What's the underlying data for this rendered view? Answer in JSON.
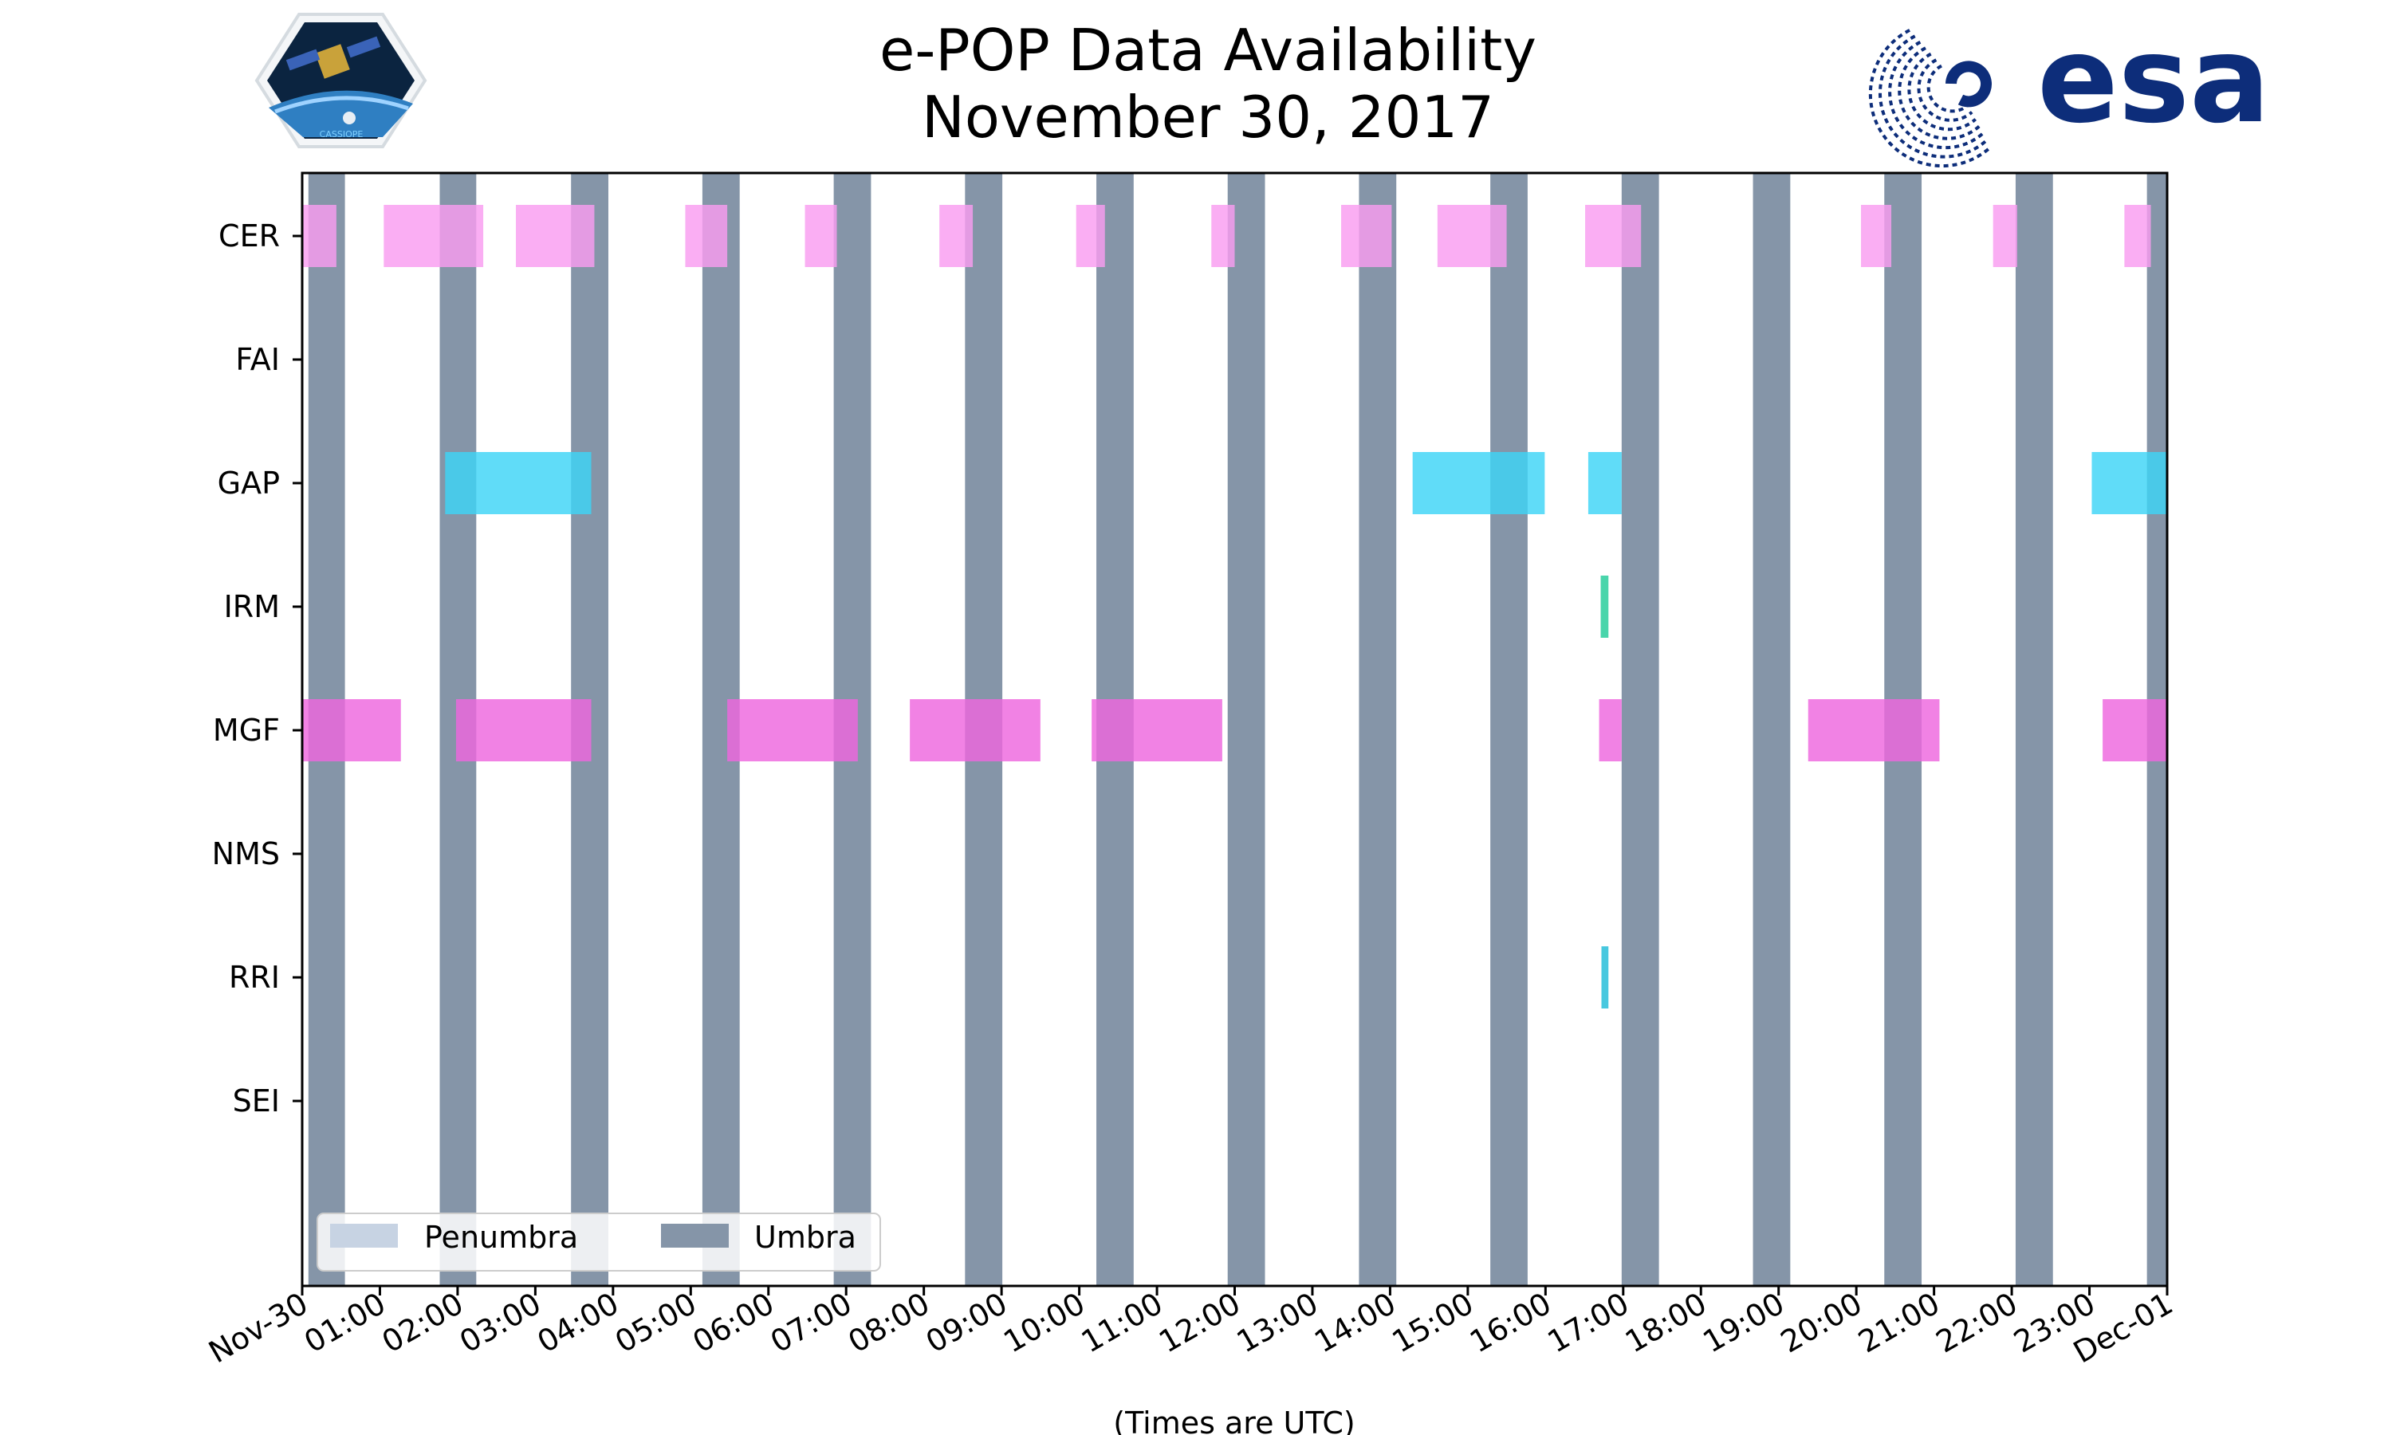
{
  "colors": {
    "umbra": "#8595a8",
    "penumbra": "#c7d3e3",
    "cer": "#f99cf0",
    "gap": "#3dd4f6",
    "irm": "#21cc98",
    "mgf": "#ee66de",
    "rri": "#1fbcd8",
    "esa_blue": "#0d2d7a"
  },
  "logos": {
    "left_name": "cassiope-mission-logo",
    "left_caption": "CASSIOPE",
    "right_name": "esa-logo",
    "right_text": "esa"
  },
  "chart_data": {
    "type": "timeline",
    "title": [
      "e-POP Data Availability",
      "November 30, 2017"
    ],
    "xlabel": "(Times are UTC)",
    "x_unit": "hours since 2017-11-30 00:00 UTC",
    "xlim": [
      0,
      24
    ],
    "xtick_labels": [
      "Nov-30",
      "01:00",
      "02:00",
      "03:00",
      "04:00",
      "05:00",
      "06:00",
      "07:00",
      "08:00",
      "09:00",
      "10:00",
      "11:00",
      "12:00",
      "13:00",
      "14:00",
      "15:00",
      "16:00",
      "17:00",
      "18:00",
      "19:00",
      "20:00",
      "21:00",
      "22:00",
      "23:00",
      "Dec-01"
    ],
    "instruments": [
      "CER",
      "FAI",
      "GAP",
      "IRM",
      "MGF",
      "NMS",
      "RRI",
      "SEI"
    ],
    "legend": {
      "placement": "lower-left",
      "entries": [
        "Penumbra",
        "Umbra"
      ]
    },
    "umbra": [
      [
        0.08,
        0.55
      ],
      [
        1.77,
        2.24
      ],
      [
        3.46,
        3.94
      ],
      [
        5.15,
        5.63
      ],
      [
        6.84,
        7.32
      ],
      [
        8.53,
        9.01
      ],
      [
        10.22,
        10.7
      ],
      [
        11.91,
        12.39
      ],
      [
        13.6,
        14.08
      ],
      [
        15.29,
        15.77
      ],
      [
        16.98,
        17.46
      ],
      [
        18.67,
        19.15
      ],
      [
        20.36,
        20.84
      ],
      [
        22.05,
        22.53
      ],
      [
        23.74,
        24.0
      ]
    ],
    "series": [
      {
        "name": "CER",
        "color_key": "cer",
        "intervals": [
          [
            0.0,
            0.44
          ],
          [
            1.05,
            2.33
          ],
          [
            2.75,
            3.76
          ],
          [
            4.93,
            5.47
          ],
          [
            6.47,
            6.88
          ],
          [
            8.2,
            8.63
          ],
          [
            9.96,
            10.33
          ],
          [
            11.7,
            12.0
          ],
          [
            13.37,
            14.02
          ],
          [
            14.61,
            15.5
          ],
          [
            16.51,
            17.23
          ],
          [
            20.06,
            20.45
          ],
          [
            21.76,
            22.07
          ],
          [
            23.45,
            23.79
          ]
        ]
      },
      {
        "name": "FAI",
        "color_key": "cer",
        "intervals": []
      },
      {
        "name": "GAP",
        "color_key": "gap",
        "intervals": [
          [
            1.84,
            3.72
          ],
          [
            14.29,
            15.99
          ],
          [
            16.55,
            16.98
          ],
          [
            23.03,
            24.0
          ]
        ]
      },
      {
        "name": "IRM",
        "color_key": "irm",
        "intervals": [
          [
            16.71,
            16.81
          ]
        ]
      },
      {
        "name": "MGF",
        "color_key": "mgf",
        "intervals": [
          [
            0.0,
            1.27
          ],
          [
            1.98,
            3.72
          ],
          [
            5.47,
            7.15
          ],
          [
            7.82,
            9.5
          ],
          [
            10.16,
            11.84
          ],
          [
            19.38,
            21.07
          ],
          [
            23.17,
            24.0
          ],
          [
            16.69,
            16.98
          ]
        ]
      },
      {
        "name": "NMS",
        "color_key": "cer",
        "intervals": []
      },
      {
        "name": "RRI",
        "color_key": "rri",
        "intervals": [
          [
            16.72,
            16.81
          ]
        ]
      },
      {
        "name": "SEI",
        "color_key": "cer",
        "intervals": []
      }
    ]
  }
}
